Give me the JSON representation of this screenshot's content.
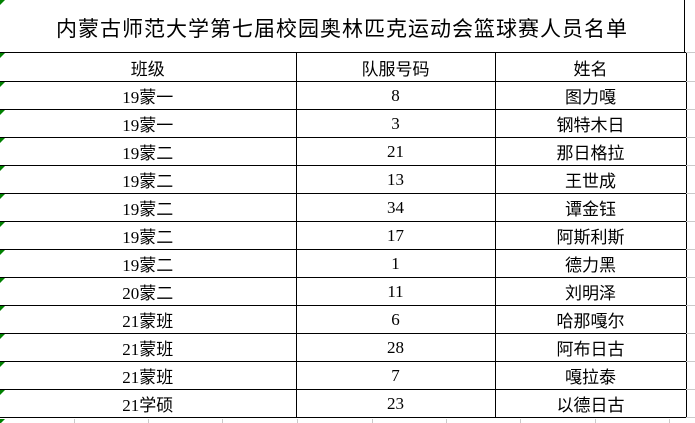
{
  "title": "内蒙古师范大学第七届校园奥林匹克运动会篮球赛人员名单",
  "table": {
    "columns": [
      "班级",
      "队服号码",
      "姓名"
    ],
    "rows": [
      {
        "class": "19蒙一",
        "number": "8",
        "name": "图力嘎"
      },
      {
        "class": "19蒙一",
        "number": "3",
        "name": "钢特木日"
      },
      {
        "class": "19蒙二",
        "number": "21",
        "name": "那日格拉"
      },
      {
        "class": "19蒙二",
        "number": "13",
        "name": "王世成"
      },
      {
        "class": "19蒙二",
        "number": "34",
        "name": "谭金钰"
      },
      {
        "class": "19蒙二",
        "number": "17",
        "name": "阿斯利斯"
      },
      {
        "class": "19蒙二",
        "number": "1",
        "name": "德力黑"
      },
      {
        "class": "20蒙二",
        "number": "11",
        "name": "刘明泽"
      },
      {
        "class": "21蒙班",
        "number": "6",
        "name": "哈那嘎尔"
      },
      {
        "class": "21蒙班",
        "number": "28",
        "name": "阿布日古"
      },
      {
        "class": "21蒙班",
        "number": "7",
        "name": "嘎拉泰"
      },
      {
        "class": "21学硕",
        "number": "23",
        "name": "以德日古"
      }
    ]
  },
  "colors": {
    "border": "#000000",
    "error_triangle_green": "#008000",
    "gridline_gray": "#c9c9c9",
    "background": "#ffffff",
    "text": "#000000"
  }
}
